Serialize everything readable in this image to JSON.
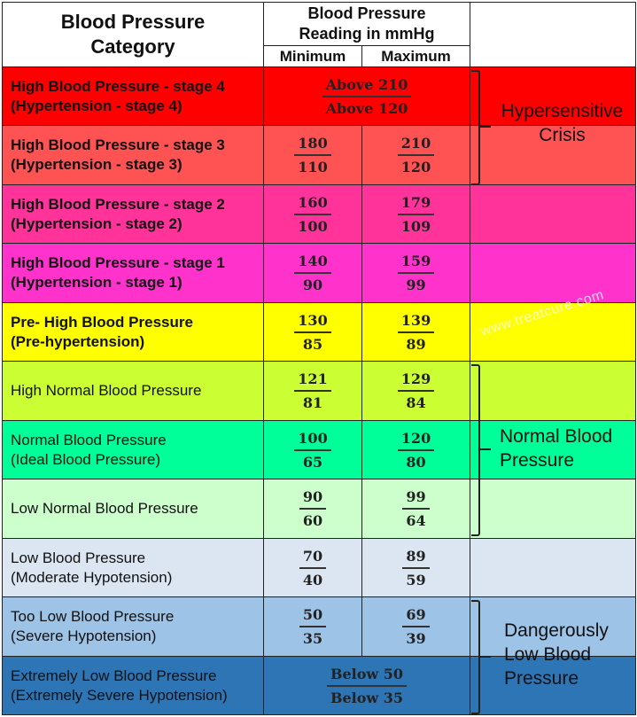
{
  "header": {
    "category": "Blood Pressure Category",
    "reading": "Blood Pressure Reading in mmHg",
    "minimum": "Minimum",
    "maximum": "Maximum"
  },
  "rows": [
    {
      "line1": "High Blood Pressure - stage 4",
      "line2": "(Hypertension - stage 4)",
      "merged_top": "Above 210",
      "merged_bottom": "Above 120",
      "color": "#ff0000"
    },
    {
      "line1": "High Blood Pressure - stage 3",
      "line2": "(Hypertension - stage 3)",
      "min_top": "180",
      "min_bottom": "110",
      "max_top": "210",
      "max_bottom": "120",
      "color": "#ff5252"
    },
    {
      "line1": "High Blood Pressure - stage 2",
      "line2": "(Hypertension - stage 2)",
      "min_top": "160",
      "min_bottom": "100",
      "max_top": "179",
      "max_bottom": "109",
      "color": "#ff3399"
    },
    {
      "line1": "High Blood Pressure - stage 1",
      "line2": "(Hypertension - stage 1)",
      "min_top": "140",
      "min_bottom": "90",
      "max_top": "159",
      "max_bottom": "99",
      "color": "#ff33cc"
    },
    {
      "line1": "Pre- High Blood Pressure",
      "line2": "(Pre-hypertension)",
      "min_top": "130",
      "min_bottom": "85",
      "max_top": "139",
      "max_bottom": "89",
      "color": "#ffff00"
    },
    {
      "line1": "High Normal Blood Pressure",
      "line2": "",
      "min_top": "121",
      "min_bottom": "81",
      "max_top": "129",
      "max_bottom": "84",
      "color": "#ccff33"
    },
    {
      "line1": "Normal Blood Pressure",
      "line2": "(Ideal Blood Pressure)",
      "min_top": "100",
      "min_bottom": "65",
      "max_top": "120",
      "max_bottom": "80",
      "color": "#00ff99"
    },
    {
      "line1": "Low Normal Blood Pressure",
      "line2": "",
      "min_top": "90",
      "min_bottom": "60",
      "max_top": "99",
      "max_bottom": "64",
      "color": "#ccffcc"
    },
    {
      "line1": "Low Blood Pressure",
      "line2": "(Moderate Hypotension)",
      "min_top": "70",
      "min_bottom": "40",
      "max_top": "89",
      "max_bottom": "59",
      "color": "#dce6f2"
    },
    {
      "line1": "Too Low Blood Pressure",
      "line2": "(Severe Hypotension)",
      "min_top": "50",
      "min_bottom": "35",
      "max_top": "69",
      "max_bottom": "39",
      "color": "#9dc3e6"
    },
    {
      "line1": "Extremely Low Blood Pressure",
      "line2": "(Extremely Severe Hypotension)",
      "merged_top": "Below 50",
      "merged_bottom": "Below 35",
      "color": "#2e75b6"
    }
  ],
  "groups": {
    "crisis": "Hypersensitive Crisis",
    "normal": "Normal Blood Pressure",
    "danger": "Dangerously Low Blood Pressure"
  },
  "watermark": "www.treatcure.com"
}
